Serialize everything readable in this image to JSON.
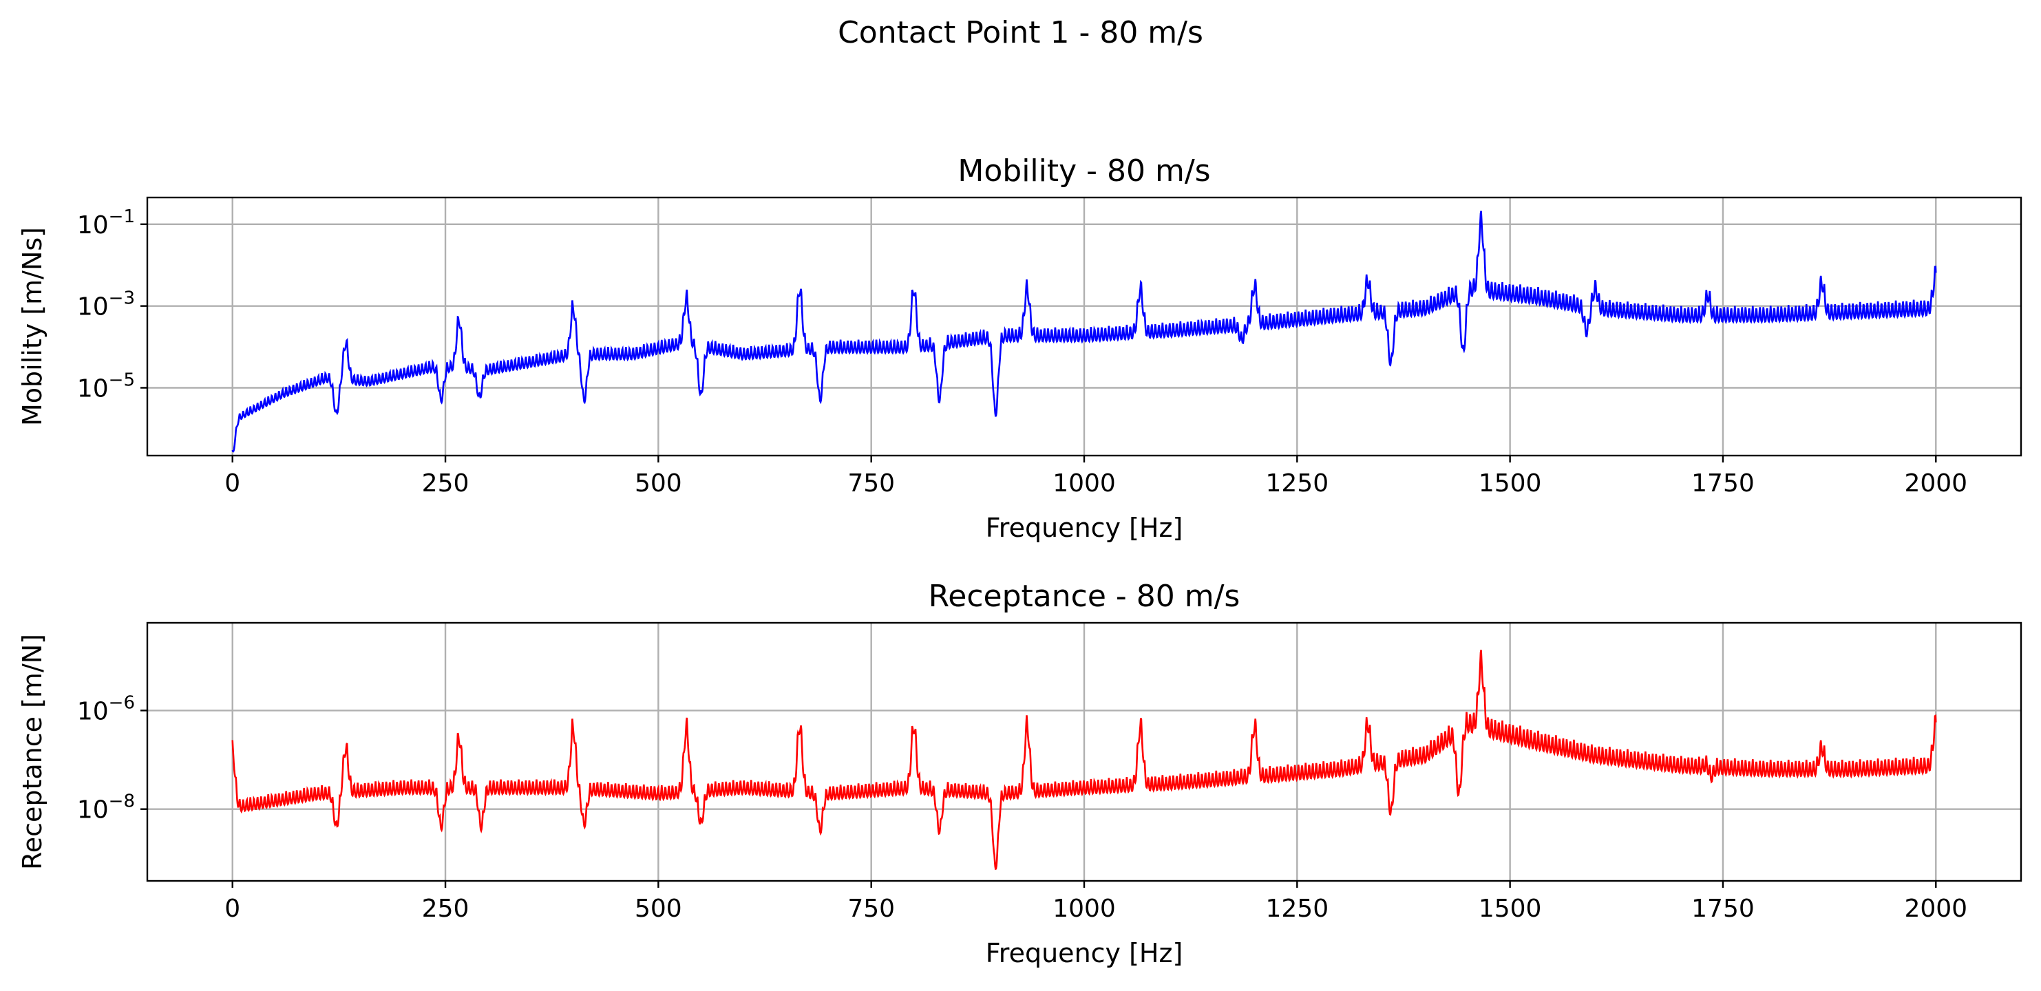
{
  "figure": {
    "title": "Contact Point 1 - 80 m/s"
  },
  "chart_data": [
    {
      "type": "line",
      "title": "Mobility - 80 m/s",
      "xlabel": "Frequency [Hz]",
      "ylabel": "Mobility [m/Ns]",
      "yscale": "log",
      "xlim": [
        -100,
        2100
      ],
      "ylim": [
        2.2e-07,
        0.45
      ],
      "xticks": [
        0,
        250,
        500,
        750,
        1000,
        1250,
        1500,
        1750,
        2000
      ],
      "xtick_labels": [
        "0",
        "250",
        "500",
        "750",
        "1000",
        "1250",
        "1500",
        "1750",
        "2000"
      ],
      "yticks": [
        1e-05,
        0.001,
        0.1
      ],
      "ytick_labels": [
        {
          "base": "10",
          "exp": "−5"
        },
        {
          "base": "10",
          "exp": "−3"
        },
        {
          "base": "10",
          "exp": "−1"
        }
      ],
      "grid": true,
      "color": "#0000ff",
      "series": [
        {
          "peaks": [
            {
              "x": 133,
              "y": 0.0002
            },
            {
              "x": 266,
              "y": 0.0008
            },
            {
              "x": 400,
              "y": 0.0016
            },
            {
              "x": 533,
              "y": 0.0028
            },
            {
              "x": 666,
              "y": 0.005
            },
            {
              "x": 800,
              "y": 0.005
            },
            {
              "x": 933,
              "y": 0.005
            },
            {
              "x": 1066,
              "y": 0.005
            },
            {
              "x": 1200,
              "y": 0.006
            },
            {
              "x": 1333,
              "y": 0.008
            },
            {
              "x": 1466,
              "y": 0.25
            },
            {
              "x": 1600,
              "y": 0.005
            },
            {
              "x": 1733,
              "y": 0.005
            },
            {
              "x": 1866,
              "y": 0.007
            },
            {
              "x": 2000,
              "y": 0.012
            }
          ],
          "antiresonances": [
            {
              "x": 0,
              "y": 3e-07
            },
            {
              "x": 122,
              "y": 3e-06
            },
            {
              "x": 245,
              "y": 7e-06
            },
            {
              "x": 290,
              "y": 8e-06
            },
            {
              "x": 413,
              "y": 7e-06
            },
            {
              "x": 550,
              "y": 9e-06
            },
            {
              "x": 690,
              "y": 7e-06
            },
            {
              "x": 830,
              "y": 7e-06
            },
            {
              "x": 896,
              "y": 3e-06
            },
            {
              "x": 1185,
              "y": 0.00025
            },
            {
              "x": 1360,
              "y": 6e-05
            },
            {
              "x": 1445,
              "y": 0.00012
            },
            {
              "x": 1590,
              "y": 0.0004
            },
            {
              "x": 1735,
              "y": 0.0006
            }
          ],
          "baseline": [
            {
              "x": 0,
              "y": 2e-06
            },
            {
              "x": 60,
              "y": 1e-05
            },
            {
              "x": 110,
              "y": 2.5e-05
            },
            {
              "x": 160,
              "y": 2e-05
            },
            {
              "x": 240,
              "y": 5e-05
            },
            {
              "x": 300,
              "y": 4e-05
            },
            {
              "x": 400,
              "y": 0.0001
            },
            {
              "x": 470,
              "y": 0.0001
            },
            {
              "x": 530,
              "y": 0.0002
            },
            {
              "x": 600,
              "y": 0.0001
            },
            {
              "x": 700,
              "y": 0.00015
            },
            {
              "x": 800,
              "y": 0.00015
            },
            {
              "x": 900,
              "y": 0.0003
            },
            {
              "x": 1000,
              "y": 0.0003
            },
            {
              "x": 1100,
              "y": 0.0004
            },
            {
              "x": 1200,
              "y": 0.0006
            },
            {
              "x": 1300,
              "y": 0.001
            },
            {
              "x": 1400,
              "y": 0.0015
            },
            {
              "x": 1450,
              "y": 0.005
            },
            {
              "x": 1530,
              "y": 0.003
            },
            {
              "x": 1600,
              "y": 0.0015
            },
            {
              "x": 1700,
              "y": 0.001
            },
            {
              "x": 1800,
              "y": 0.001
            },
            {
              "x": 2000,
              "y": 0.0015
            }
          ]
        }
      ]
    },
    {
      "type": "line",
      "title": "Receptance - 80 m/s",
      "xlabel": "Frequency [Hz]",
      "ylabel": "Receptance [m/N]",
      "yscale": "log",
      "xlim": [
        -100,
        2100
      ],
      "ylim": [
        3.5e-10,
        6e-05
      ],
      "xticks": [
        0,
        250,
        500,
        750,
        1000,
        1250,
        1500,
        1750,
        2000
      ],
      "xtick_labels": [
        "0",
        "250",
        "500",
        "750",
        "1000",
        "1250",
        "1500",
        "1750",
        "2000"
      ],
      "yticks": [
        1e-08,
        1e-06
      ],
      "ytick_labels": [
        {
          "base": "10",
          "exp": "−8"
        },
        {
          "base": "10",
          "exp": "−6"
        }
      ],
      "grid": true,
      "color": "#ff0000",
      "series": [
        {
          "peaks": [
            {
              "x": 0,
              "y": 2.5e-07
            },
            {
              "x": 133,
              "y": 3e-07
            },
            {
              "x": 266,
              "y": 5e-07
            },
            {
              "x": 400,
              "y": 8e-07
            },
            {
              "x": 533,
              "y": 8e-07
            },
            {
              "x": 666,
              "y": 9e-07
            },
            {
              "x": 800,
              "y": 9e-07
            },
            {
              "x": 933,
              "y": 9e-07
            },
            {
              "x": 1066,
              "y": 9e-07
            },
            {
              "x": 1200,
              "y": 9e-07
            },
            {
              "x": 1333,
              "y": 1e-06
            },
            {
              "x": 1466,
              "y": 2e-05
            },
            {
              "x": 1600,
              "y": 2e-07
            },
            {
              "x": 1733,
              "y": 2e-07
            },
            {
              "x": 1866,
              "y": 3e-07
            },
            {
              "x": 2000,
              "y": 1e-06
            }
          ],
          "antiresonances": [
            {
              "x": 122,
              "y": 6e-09
            },
            {
              "x": 245,
              "y": 6e-09
            },
            {
              "x": 292,
              "y": 6e-09
            },
            {
              "x": 413,
              "y": 7e-09
            },
            {
              "x": 550,
              "y": 7e-09
            },
            {
              "x": 690,
              "y": 5e-09
            },
            {
              "x": 830,
              "y": 5e-09
            },
            {
              "x": 896,
              "y": 8e-10
            },
            {
              "x": 1185,
              "y": 7e-08
            },
            {
              "x": 1360,
              "y": 1.2e-08
            },
            {
              "x": 1440,
              "y": 3e-08
            },
            {
              "x": 1735,
              "y": 5e-08
            }
          ],
          "baseline": [
            {
              "x": 0,
              "y": 1.5e-08
            },
            {
              "x": 100,
              "y": 3e-08
            },
            {
              "x": 200,
              "y": 4e-08
            },
            {
              "x": 300,
              "y": 4e-08
            },
            {
              "x": 400,
              "y": 4e-08
            },
            {
              "x": 500,
              "y": 3e-08
            },
            {
              "x": 600,
              "y": 4e-08
            },
            {
              "x": 700,
              "y": 3e-08
            },
            {
              "x": 800,
              "y": 4e-08
            },
            {
              "x": 900,
              "y": 3e-08
            },
            {
              "x": 1000,
              "y": 4e-08
            },
            {
              "x": 1100,
              "y": 5e-08
            },
            {
              "x": 1200,
              "y": 7e-08
            },
            {
              "x": 1300,
              "y": 1e-07
            },
            {
              "x": 1400,
              "y": 2e-07
            },
            {
              "x": 1450,
              "y": 1e-06
            },
            {
              "x": 1530,
              "y": 4e-07
            },
            {
              "x": 1600,
              "y": 2e-07
            },
            {
              "x": 1700,
              "y": 1.2e-07
            },
            {
              "x": 1800,
              "y": 1e-07
            },
            {
              "x": 1900,
              "y": 1e-07
            },
            {
              "x": 2000,
              "y": 1.2e-07
            }
          ]
        }
      ]
    }
  ]
}
